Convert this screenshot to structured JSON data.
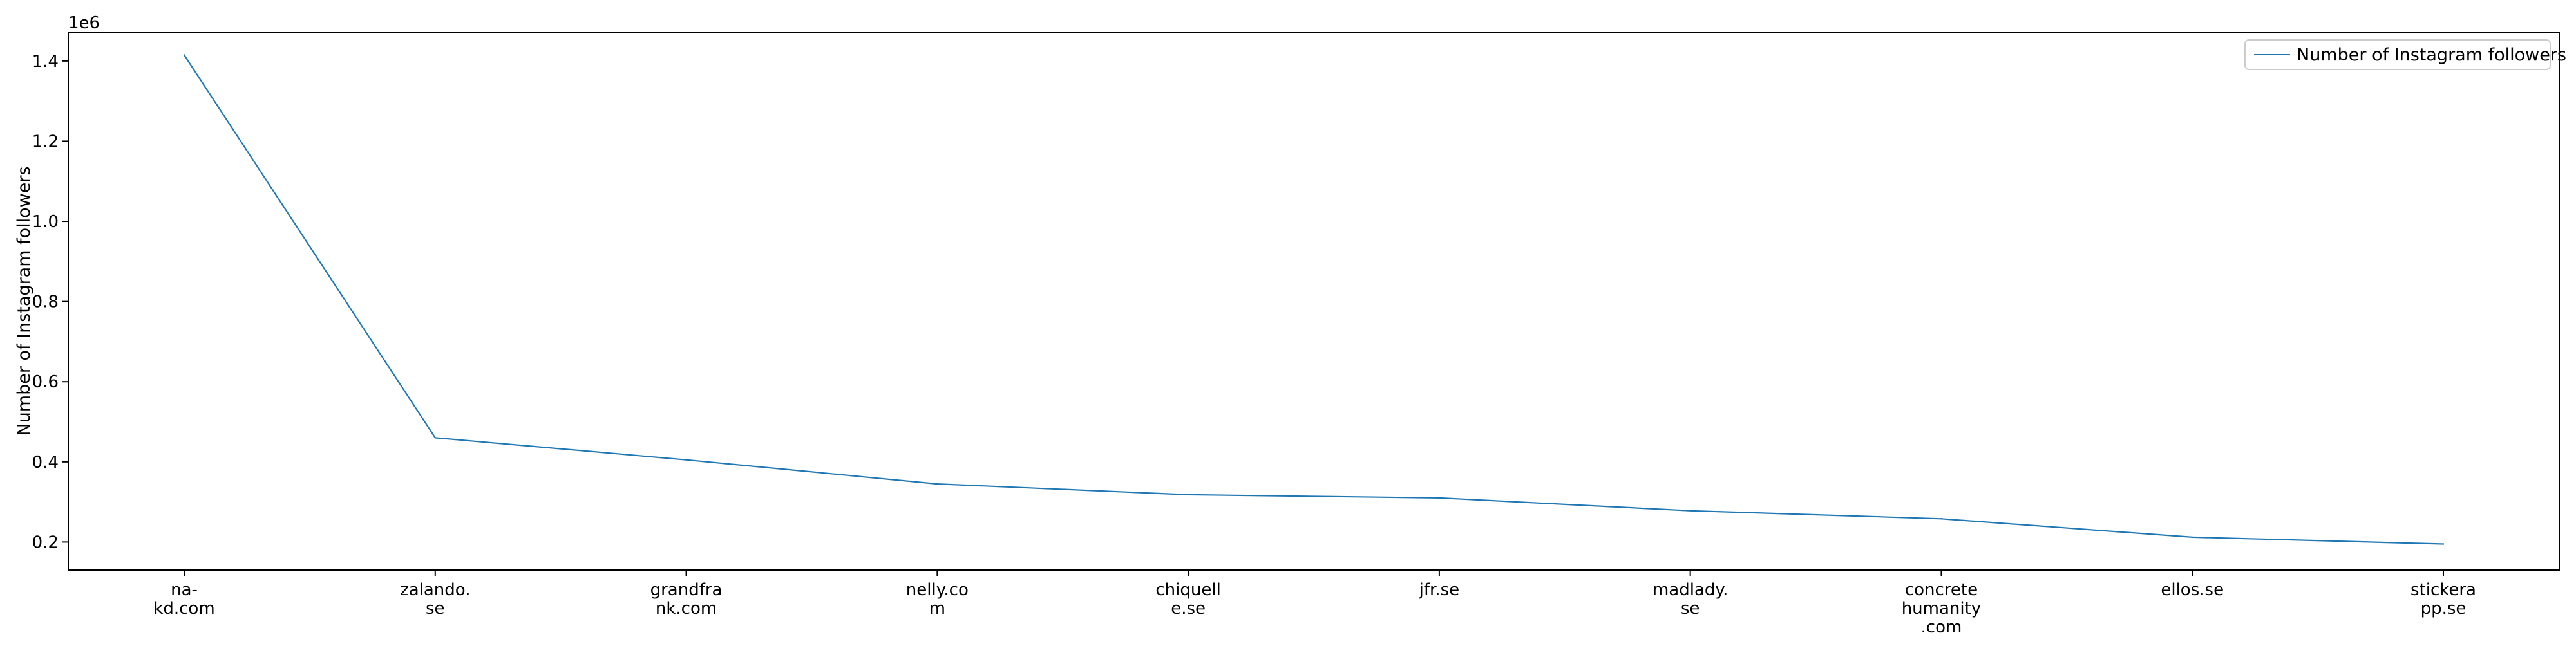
{
  "chart_data": {
    "type": "line",
    "title": "",
    "xlabel": "",
    "ylabel": "Number of Instagram followers",
    "y_offset_label": "1e6",
    "categories": [
      [
        "na-",
        "kd.com"
      ],
      [
        "zalando.",
        "se"
      ],
      [
        "grandfra",
        "nk.com"
      ],
      [
        "nelly.co",
        "m"
      ],
      [
        "chiquell",
        "e.se"
      ],
      [
        "jfr.se"
      ],
      [
        "madlady.",
        "se"
      ],
      [
        "concrete",
        "humanity",
        ".com"
      ],
      [
        "ellos.se"
      ],
      [
        "stickera",
        "pp.se"
      ]
    ],
    "series": [
      {
        "name": "Number of Instagram followers",
        "color": "#1f77b4",
        "values": [
          1415000,
          460000,
          405000,
          345000,
          318000,
          310000,
          278000,
          258000,
          212000,
          195000
        ]
      }
    ],
    "ylim": [
      130000,
      1472000
    ],
    "yticks": [
      {
        "value": 200000,
        "label": "0.2"
      },
      {
        "value": 400000,
        "label": "0.4"
      },
      {
        "value": 600000,
        "label": "0.6"
      },
      {
        "value": 800000,
        "label": "0.8"
      },
      {
        "value": 1000000,
        "label": "1.0"
      },
      {
        "value": 1200000,
        "label": "1.2"
      },
      {
        "value": 1400000,
        "label": "1.4"
      }
    ],
    "grid": false,
    "legend_position": "top-right"
  }
}
